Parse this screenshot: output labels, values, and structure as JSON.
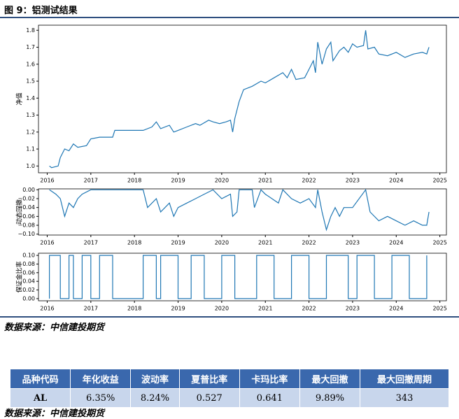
{
  "header": {
    "title": "图 9：铝测试结果"
  },
  "chart_data": [
    {
      "type": "line",
      "ylabel": "净值",
      "color": "#1f77b4",
      "x": [
        2016.05,
        2016.1,
        2016.25,
        2016.3,
        2016.4,
        2016.5,
        2016.6,
        2016.7,
        2016.9,
        2017.0,
        2017.2,
        2017.5,
        2017.55,
        2018.2,
        2018.4,
        2018.5,
        2018.6,
        2018.8,
        2018.9,
        2019.0,
        2019.2,
        2019.4,
        2019.5,
        2019.7,
        2019.8,
        2019.95,
        2020.1,
        2020.2,
        2020.25,
        2020.3,
        2020.4,
        2020.5,
        2020.7,
        2020.9,
        2021.0,
        2021.2,
        2021.4,
        2021.5,
        2021.6,
        2021.7,
        2021.9,
        2022.0,
        2022.1,
        2022.15,
        2022.2,
        2022.3,
        2022.4,
        2022.5,
        2022.55,
        2022.7,
        2022.8,
        2022.9,
        2023.0,
        2023.1,
        2023.25,
        2023.3,
        2023.35,
        2023.5,
        2023.6,
        2023.8,
        2024.0,
        2024.2,
        2024.4,
        2024.6,
        2024.7,
        2024.75
      ],
      "values": [
        1.0,
        0.99,
        1.0,
        1.05,
        1.1,
        1.09,
        1.13,
        1.11,
        1.12,
        1.16,
        1.17,
        1.17,
        1.21,
        1.21,
        1.23,
        1.26,
        1.22,
        1.24,
        1.2,
        1.21,
        1.23,
        1.25,
        1.24,
        1.27,
        1.26,
        1.25,
        1.26,
        1.27,
        1.2,
        1.28,
        1.38,
        1.45,
        1.47,
        1.5,
        1.49,
        1.52,
        1.55,
        1.52,
        1.57,
        1.51,
        1.52,
        1.57,
        1.62,
        1.55,
        1.73,
        1.6,
        1.69,
        1.73,
        1.62,
        1.68,
        1.7,
        1.67,
        1.72,
        1.7,
        1.71,
        1.8,
        1.69,
        1.7,
        1.66,
        1.65,
        1.67,
        1.64,
        1.66,
        1.67,
        1.66,
        1.7
      ],
      "xlim": [
        2015.8,
        2025.15
      ],
      "xticks": [
        2016,
        2017,
        2018,
        2019,
        2020,
        2021,
        2022,
        2023,
        2024,
        2025
      ],
      "ylim": [
        0.96,
        1.83
      ],
      "yticks": [
        {
          "value": 1,
          "label": "1.0"
        },
        1.1,
        1.2,
        1.3,
        1.4,
        1.5,
        1.6,
        1.7,
        1.8
      ]
    },
    {
      "type": "line",
      "ylabel": "动态回撤",
      "color": "#1f77b4",
      "x": [
        2016.05,
        2016.2,
        2016.3,
        2016.4,
        2016.5,
        2016.6,
        2016.7,
        2016.8,
        2017.0,
        2017.5,
        2018.2,
        2018.3,
        2018.5,
        2018.6,
        2018.8,
        2018.9,
        2019.0,
        2019.2,
        2019.4,
        2019.6,
        2019.8,
        2020.0,
        2020.2,
        2020.25,
        2020.35,
        2020.4,
        2020.7,
        2020.75,
        2020.9,
        2021.0,
        2021.3,
        2021.4,
        2021.6,
        2021.8,
        2022.0,
        2022.15,
        2022.2,
        2022.3,
        2022.4,
        2022.5,
        2022.6,
        2022.7,
        2022.8,
        2023.0,
        2023.3,
        2023.4,
        2023.6,
        2023.8,
        2024.0,
        2024.2,
        2024.4,
        2024.6,
        2024.7,
        2024.75
      ],
      "values": [
        0,
        -0.01,
        -0.02,
        -0.06,
        -0.03,
        -0.04,
        -0.02,
        -0.01,
        0,
        0,
        0,
        -0.04,
        -0.02,
        -0.05,
        -0.03,
        -0.06,
        -0.04,
        -0.03,
        -0.02,
        -0.01,
        0,
        -0.02,
        -0.01,
        -0.06,
        -0.05,
        0,
        0,
        -0.04,
        0,
        -0.01,
        -0.03,
        0,
        -0.02,
        -0.03,
        -0.02,
        -0.04,
        0,
        -0.05,
        -0.09,
        -0.06,
        -0.04,
        -0.06,
        -0.04,
        -0.04,
        0,
        -0.05,
        -0.07,
        -0.06,
        -0.07,
        -0.08,
        -0.07,
        -0.08,
        -0.08,
        -0.05
      ],
      "xlim": [
        2015.8,
        2025.15
      ],
      "xticks": [
        2016,
        2017,
        2018,
        2019,
        2020,
        2021,
        2022,
        2023,
        2024,
        2025
      ],
      "ylim": [
        -0.102,
        0.002
      ],
      "yticks": [
        {
          "value": 0,
          "label": "0.00"
        },
        {
          "value": -0.02,
          "label": "−0.02"
        },
        {
          "value": -0.04,
          "label": "−0.04"
        },
        {
          "value": -0.06,
          "label": "−0.06"
        },
        {
          "value": -0.08,
          "label": "−0.08"
        },
        {
          "value": -0.1,
          "label": "−0.10"
        }
      ]
    },
    {
      "type": "line",
      "ylabel": "保证金比率",
      "color": "#1f77b4",
      "x": [
        2016.05,
        2016.05,
        2016.3,
        2016.3,
        2016.5,
        2016.5,
        2016.6,
        2016.6,
        2016.8,
        2016.8,
        2017.0,
        2017.0,
        2017.2,
        2017.2,
        2017.5,
        2017.5,
        2018.2,
        2018.2,
        2018.5,
        2018.5,
        2018.6,
        2018.6,
        2019.0,
        2019.0,
        2019.3,
        2019.3,
        2019.6,
        2019.6,
        2020.0,
        2020.0,
        2020.3,
        2020.3,
        2020.8,
        2020.8,
        2021.2,
        2021.2,
        2021.6,
        2021.6,
        2022.0,
        2022.0,
        2022.4,
        2022.4,
        2022.9,
        2022.9,
        2023.1,
        2023.1,
        2023.5,
        2023.5,
        2023.9,
        2023.9,
        2024.3,
        2024.3,
        2024.7,
        2024.7
      ],
      "values": [
        0,
        0.1,
        0.1,
        0,
        0,
        0.1,
        0.1,
        0,
        0,
        0.1,
        0.1,
        0,
        0,
        0.1,
        0.1,
        0,
        0,
        0.1,
        0.1,
        0,
        0,
        0.1,
        0.1,
        0,
        0,
        0.1,
        0.1,
        0,
        0,
        0.1,
        0.1,
        0,
        0,
        0.1,
        0.1,
        0,
        0,
        0.1,
        0.1,
        0,
        0,
        0.1,
        0.1,
        0,
        0,
        0.1,
        0.1,
        0,
        0,
        0.1,
        0.1,
        0,
        0,
        0.1
      ],
      "xlim": [
        2015.8,
        2025.15
      ],
      "xticks": [
        2016,
        2017,
        2018,
        2019,
        2020,
        2021,
        2022,
        2023,
        2024,
        2025
      ],
      "ylim": [
        -0.005,
        0.105
      ],
      "yticks": [
        {
          "value": 0,
          "label": "0.00"
        },
        0.02,
        0.04,
        0.06,
        0.08,
        {
          "value": 0.1,
          "label": "0.10"
        }
      ]
    }
  ],
  "source1": "数据来源：中信建投期货",
  "table": {
    "header": [
      "品种代码",
      "年化收益",
      "波动率",
      "夏普比率",
      "卡玛比率",
      "最大回撤",
      "最大回撤周期"
    ],
    "rows": [
      [
        "AL",
        "6.35%",
        "8.24%",
        "0.527",
        "0.641",
        "9.89%",
        "343"
      ]
    ]
  },
  "source2": "数据来源：中信建投期货"
}
